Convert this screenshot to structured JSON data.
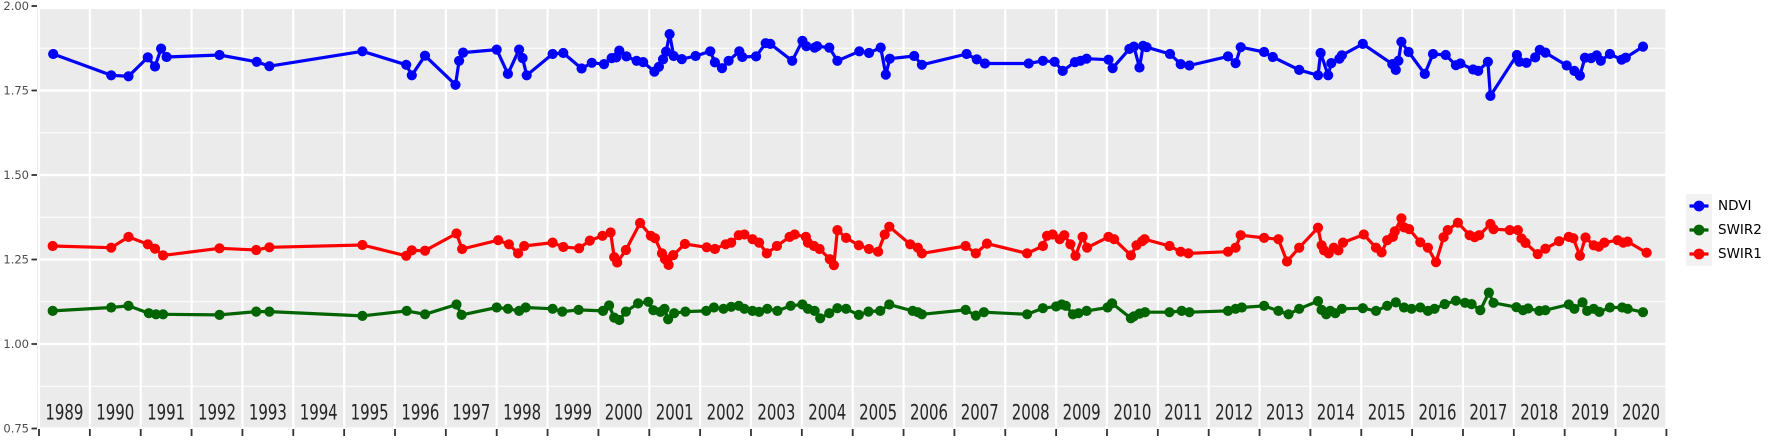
{
  "figure": {
    "background": "#FFFFFF",
    "panel_background": "#EBEBEB",
    "grid_color": "#FFFFFF",
    "tick_color": "#333333",
    "y_axis_text_color": "#4D4D4D",
    "x_axis_text_color": "#262626"
  },
  "axes": {
    "y_range": [
      0.75,
      2.0
    ],
    "x_range": [
      1989,
      2021
    ],
    "y_tick_values": [
      2.0,
      1.75,
      1.5,
      1.25,
      1.0,
      0.75
    ],
    "y_tick_labels": [
      "2.00",
      "1.75",
      "1.50",
      "1.25",
      "1.00",
      "0.75"
    ],
    "y_minor_values": [
      1.875,
      1.625,
      1.375,
      1.125,
      0.875
    ],
    "x_tick_years": [
      1989,
      1990,
      1991,
      1992,
      1993,
      1994,
      1995,
      1996,
      1997,
      1998,
      1999,
      2000,
      2001,
      2002,
      2003,
      2004,
      2005,
      2006,
      2007,
      2008,
      2009,
      2010,
      2011,
      2012,
      2013,
      2014,
      2015,
      2016,
      2017,
      2018,
      2019,
      2020,
      2021
    ],
    "x_year_labels": [
      "1989",
      "1990",
      "1991",
      "1992",
      "1993",
      "1994",
      "1995",
      "1996",
      "1997",
      "1998",
      "1999",
      "2000",
      "2001",
      "2002",
      "2003",
      "2004",
      "2005",
      "2006",
      "2007",
      "2008",
      "2009",
      "2010",
      "2011",
      "2012",
      "2013",
      "2014",
      "2015",
      "2016",
      "2017",
      "2018",
      "2019",
      "2020"
    ]
  },
  "legend": {
    "key_background": "#F2F2F2",
    "label_color": "#000000",
    "items": [
      {
        "label": "NDVI",
        "color": "#0000FF"
      },
      {
        "label": "SWIR2",
        "color": "#006400"
      },
      {
        "label": "SWIR1",
        "color": "#FF0000"
      }
    ]
  },
  "chart_data": {
    "type": "line",
    "x_unit": "decimal_year",
    "grid": true,
    "legend_position": "right",
    "series": [
      {
        "name": "NDVI",
        "color": "#0000FF",
        "x": [
          1989.28,
          1990.42,
          1990.76,
          1991.14,
          1991.28,
          1991.4,
          1991.51,
          1992.55,
          1993.28,
          1993.53,
          1995.36,
          1996.22,
          1996.33,
          1996.59,
          1997.19,
          1997.26,
          1997.34,
          1998.0,
          1998.22,
          1998.44,
          1998.51,
          1998.59,
          1999.1,
          1999.31,
          1999.67,
          1999.87,
          2000.11,
          2000.26,
          2000.35,
          2000.41,
          2000.55,
          2000.75,
          2000.88,
          2001.1,
          2001.19,
          2001.27,
          2001.33,
          2001.4,
          2001.48,
          2001.64,
          2001.91,
          2002.2,
          2002.29,
          2002.43,
          2002.56,
          2002.77,
          2002.83,
          2003.1,
          2003.29,
          2003.38,
          2003.81,
          2004.01,
          2004.09,
          2004.25,
          2004.3,
          2004.54,
          2004.7,
          2005.13,
          2005.32,
          2005.55,
          2005.65,
          2005.73,
          2006.21,
          2006.36,
          2007.24,
          2007.44,
          2007.6,
          2008.46,
          2008.74,
          2008.97,
          2009.13,
          2009.37,
          2009.48,
          2009.6,
          2010.03,
          2010.11,
          2010.44,
          2010.53,
          2010.64,
          2010.71,
          2010.78,
          2011.24,
          2011.45,
          2011.62,
          2012.38,
          2012.53,
          2012.63,
          2013.09,
          2013.26,
          2013.78,
          2014.15,
          2014.2,
          2014.35,
          2014.41,
          2014.57,
          2014.62,
          2015.03,
          2015.61,
          2015.68,
          2015.73,
          2015.79,
          2015.93,
          2016.25,
          2016.41,
          2016.66,
          2016.86,
          2016.95,
          2017.2,
          2017.3,
          2017.49,
          2017.54,
          2018.06,
          2018.11,
          2018.25,
          2018.42,
          2018.51,
          2018.62,
          2019.04,
          2019.19,
          2019.3,
          2019.4,
          2019.52,
          2019.63,
          2019.71,
          2019.89,
          2020.12,
          2020.2,
          2020.54
        ],
        "y": [
          1.858,
          1.795,
          1.792,
          1.848,
          1.821,
          1.874,
          1.849,
          1.855,
          1.835,
          1.822,
          1.866,
          1.826,
          1.795,
          1.853,
          1.767,
          1.838,
          1.862,
          1.871,
          1.799,
          1.871,
          1.846,
          1.795,
          1.858,
          1.861,
          1.815,
          1.832,
          1.828,
          1.846,
          1.848,
          1.868,
          1.851,
          1.838,
          1.834,
          1.806,
          1.82,
          1.842,
          1.865,
          1.917,
          1.852,
          1.843,
          1.852,
          1.866,
          1.833,
          1.816,
          1.838,
          1.866,
          1.849,
          1.851,
          1.89,
          1.888,
          1.838,
          1.897,
          1.881,
          1.877,
          1.881,
          1.877,
          1.838,
          1.866,
          1.861,
          1.877,
          1.797,
          1.844,
          1.852,
          1.826,
          1.858,
          1.842,
          1.83,
          1.83,
          1.838,
          1.835,
          1.808,
          1.834,
          1.838,
          1.844,
          1.841,
          1.816,
          1.873,
          1.88,
          1.818,
          1.882,
          1.878,
          1.858,
          1.828,
          1.824,
          1.851,
          1.831,
          1.878,
          1.864,
          1.849,
          1.811,
          1.795,
          1.861,
          1.795,
          1.831,
          1.844,
          1.854,
          1.888,
          1.828,
          1.811,
          1.838,
          1.894,
          1.864,
          1.799,
          1.858,
          1.855,
          1.825,
          1.83,
          1.812,
          1.808,
          1.835,
          1.734,
          1.855,
          1.835,
          1.832,
          1.848,
          1.87,
          1.862,
          1.824,
          1.808,
          1.794,
          1.847,
          1.846,
          1.854,
          1.838,
          1.858,
          1.841,
          1.847,
          1.88
        ]
      },
      {
        "name": "SWIR2",
        "color": "#006400",
        "x": [
          1989.27,
          1990.42,
          1990.76,
          1991.16,
          1991.3,
          1991.44,
          1992.55,
          1993.27,
          1993.53,
          1995.36,
          1996.23,
          1996.59,
          1997.21,
          1997.31,
          1998.0,
          1998.22,
          1998.44,
          1998.57,
          1999.1,
          1999.29,
          1999.61,
          2000.09,
          2000.21,
          2000.31,
          2000.41,
          2000.54,
          2000.78,
          2000.98,
          2001.08,
          2001.22,
          2001.3,
          2001.37,
          2001.49,
          2001.71,
          2002.12,
          2002.27,
          2002.46,
          2002.61,
          2002.76,
          2002.87,
          2003.03,
          2003.16,
          2003.32,
          2003.52,
          2003.78,
          2004.01,
          2004.12,
          2004.25,
          2004.36,
          2004.54,
          2004.7,
          2004.87,
          2005.12,
          2005.31,
          2005.54,
          2005.72,
          2006.18,
          2006.28,
          2006.36,
          2007.22,
          2007.42,
          2007.58,
          2008.43,
          2008.74,
          2009.0,
          2009.11,
          2009.19,
          2009.33,
          2009.44,
          2009.6,
          2010.01,
          2010.1,
          2010.47,
          2010.53,
          2010.64,
          2010.75,
          2011.23,
          2011.47,
          2011.62,
          2012.38,
          2012.53,
          2012.65,
          2013.09,
          2013.37,
          2013.57,
          2013.78,
          2014.15,
          2014.22,
          2014.31,
          2014.39,
          2014.49,
          2014.62,
          2015.03,
          2015.29,
          2015.51,
          2015.68,
          2015.84,
          2015.99,
          2016.16,
          2016.31,
          2016.44,
          2016.64,
          2016.86,
          2017.04,
          2017.17,
          2017.34,
          2017.51,
          2017.6,
          2018.05,
          2018.18,
          2018.28,
          2018.5,
          2018.62,
          2019.08,
          2019.19,
          2019.35,
          2019.44,
          2019.57,
          2019.68,
          2019.89,
          2020.13,
          2020.24,
          2020.54
        ],
        "y": [
          1.098,
          1.108,
          1.113,
          1.091,
          1.088,
          1.088,
          1.086,
          1.096,
          1.096,
          1.083,
          1.098,
          1.088,
          1.117,
          1.086,
          1.108,
          1.104,
          1.098,
          1.108,
          1.104,
          1.096,
          1.101,
          1.098,
          1.114,
          1.078,
          1.071,
          1.096,
          1.12,
          1.125,
          1.1,
          1.095,
          1.104,
          1.073,
          1.091,
          1.096,
          1.098,
          1.108,
          1.104,
          1.11,
          1.113,
          1.104,
          1.098,
          1.095,
          1.104,
          1.098,
          1.113,
          1.117,
          1.104,
          1.098,
          1.076,
          1.091,
          1.106,
          1.104,
          1.086,
          1.096,
          1.098,
          1.117,
          1.098,
          1.094,
          1.088,
          1.101,
          1.084,
          1.094,
          1.088,
          1.106,
          1.111,
          1.117,
          1.113,
          1.088,
          1.091,
          1.098,
          1.108,
          1.12,
          1.076,
          1.082,
          1.09,
          1.094,
          1.094,
          1.098,
          1.094,
          1.098,
          1.104,
          1.108,
          1.113,
          1.098,
          1.088,
          1.104,
          1.127,
          1.101,
          1.088,
          1.098,
          1.091,
          1.104,
          1.106,
          1.098,
          1.113,
          1.123,
          1.108,
          1.104,
          1.108,
          1.098,
          1.104,
          1.118,
          1.128,
          1.122,
          1.118,
          1.1,
          1.152,
          1.122,
          1.109,
          1.1,
          1.105,
          1.098,
          1.1,
          1.117,
          1.104,
          1.123,
          1.098,
          1.104,
          1.095,
          1.108,
          1.108,
          1.104,
          1.094
        ]
      },
      {
        "name": "SWIR1",
        "color": "#FF0000",
        "x": [
          1989.27,
          1990.42,
          1990.76,
          1991.14,
          1991.28,
          1991.44,
          1992.55,
          1993.27,
          1993.53,
          1995.36,
          1996.22,
          1996.33,
          1996.59,
          1997.21,
          1997.32,
          1998.03,
          1998.24,
          1998.42,
          1998.54,
          1999.1,
          1999.31,
          1999.62,
          1999.83,
          2000.08,
          2000.24,
          2000.31,
          2000.37,
          2000.54,
          2000.82,
          2001.03,
          2001.11,
          2001.25,
          2001.31,
          2001.38,
          2001.47,
          2001.7,
          2002.13,
          2002.29,
          2002.5,
          2002.61,
          2002.76,
          2002.87,
          2003.03,
          2003.16,
          2003.31,
          2003.51,
          2003.76,
          2003.86,
          2004.08,
          2004.12,
          2004.24,
          2004.35,
          2004.55,
          2004.63,
          2004.7,
          2004.87,
          2005.12,
          2005.32,
          2005.5,
          2005.63,
          2005.72,
          2006.13,
          2006.28,
          2006.36,
          2007.22,
          2007.42,
          2007.64,
          2008.43,
          2008.74,
          2008.82,
          2008.93,
          2009.07,
          2009.16,
          2009.28,
          2009.38,
          2009.52,
          2009.61,
          2010.03,
          2010.14,
          2010.47,
          2010.58,
          2010.69,
          2010.74,
          2011.23,
          2011.45,
          2011.6,
          2012.38,
          2012.53,
          2012.63,
          2013.09,
          2013.37,
          2013.54,
          2013.78,
          2014.15,
          2014.22,
          2014.27,
          2014.36,
          2014.46,
          2014.55,
          2014.64,
          2015.05,
          2015.29,
          2015.4,
          2015.51,
          2015.62,
          2015.66,
          2015.79,
          2015.84,
          2015.94,
          2016.16,
          2016.31,
          2016.47,
          2016.62,
          2016.7,
          2016.9,
          2017.13,
          2017.23,
          2017.32,
          2017.54,
          2017.6,
          2017.92,
          2018.08,
          2018.15,
          2018.23,
          2018.47,
          2018.62,
          2018.89,
          2019.08,
          2019.17,
          2019.3,
          2019.41,
          2019.57,
          2019.67,
          2019.78,
          2020.04,
          2020.15,
          2020.24,
          2020.61
        ],
        "y": [
          1.29,
          1.285,
          1.317,
          1.295,
          1.282,
          1.262,
          1.283,
          1.278,
          1.286,
          1.293,
          1.261,
          1.277,
          1.276,
          1.327,
          1.281,
          1.307,
          1.295,
          1.268,
          1.29,
          1.3,
          1.287,
          1.283,
          1.306,
          1.32,
          1.33,
          1.257,
          1.241,
          1.278,
          1.358,
          1.32,
          1.313,
          1.268,
          1.251,
          1.234,
          1.263,
          1.296,
          1.286,
          1.281,
          1.295,
          1.3,
          1.322,
          1.324,
          1.31,
          1.3,
          1.268,
          1.29,
          1.317,
          1.324,
          1.317,
          1.3,
          1.29,
          1.281,
          1.251,
          1.233,
          1.337,
          1.314,
          1.292,
          1.281,
          1.273,
          1.324,
          1.347,
          1.295,
          1.285,
          1.268,
          1.29,
          1.268,
          1.297,
          1.268,
          1.29,
          1.32,
          1.324,
          1.31,
          1.322,
          1.295,
          1.261,
          1.317,
          1.285,
          1.317,
          1.31,
          1.262,
          1.292,
          1.304,
          1.31,
          1.29,
          1.273,
          1.268,
          1.273,
          1.285,
          1.322,
          1.314,
          1.31,
          1.244,
          1.285,
          1.344,
          1.292,
          1.277,
          1.268,
          1.285,
          1.277,
          1.3,
          1.324,
          1.285,
          1.271,
          1.307,
          1.317,
          1.333,
          1.372,
          1.345,
          1.34,
          1.301,
          1.285,
          1.242,
          1.316,
          1.337,
          1.359,
          1.322,
          1.316,
          1.322,
          1.355,
          1.34,
          1.337,
          1.337,
          1.312,
          1.299,
          1.266,
          1.282,
          1.304,
          1.317,
          1.313,
          1.261,
          1.315,
          1.292,
          1.288,
          1.3,
          1.307,
          1.3,
          1.303,
          1.27
        ]
      }
    ]
  }
}
